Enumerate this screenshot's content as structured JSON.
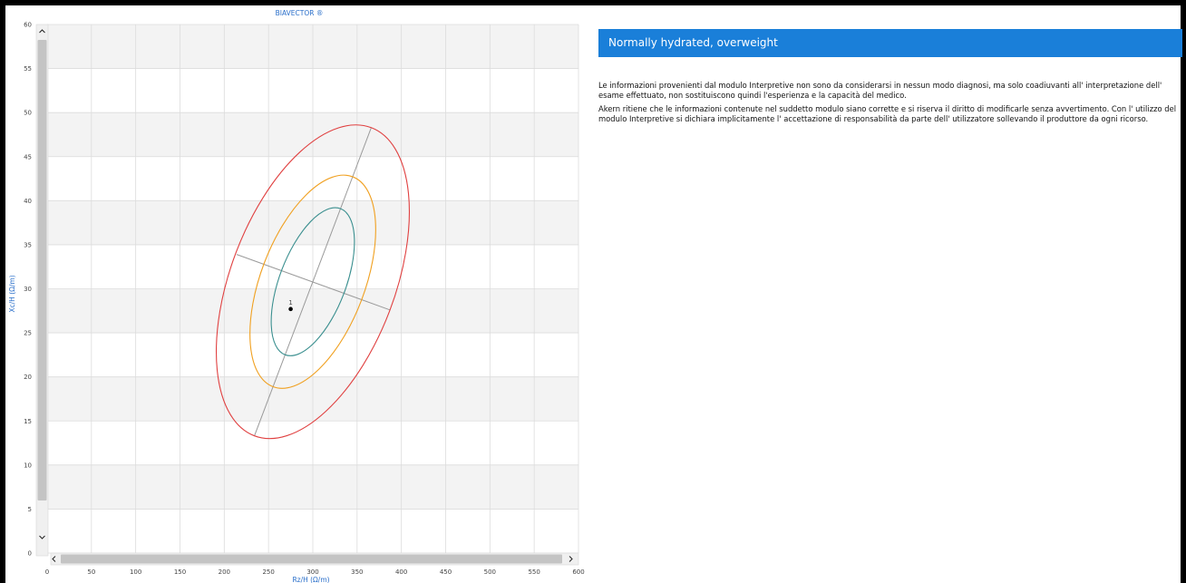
{
  "chart_data": {
    "type": "scatter",
    "title": "BIAVECTOR ®",
    "xlabel": "Rz/H (Ω/m)",
    "ylabel": "Xc/H (Ω/m)",
    "xlim": [
      0,
      600
    ],
    "ylim": [
      0,
      60
    ],
    "x_ticks": [
      0,
      50,
      100,
      150,
      200,
      250,
      300,
      350,
      400,
      450,
      500,
      550,
      600
    ],
    "y_ticks": [
      0,
      5,
      10,
      15,
      20,
      25,
      30,
      35,
      40,
      45,
      50,
      55,
      60
    ],
    "grid": true,
    "points": [
      {
        "label": "1",
        "x": 275,
        "y": 27.7
      }
    ],
    "tolerance_ellipses": [
      {
        "color": "#3a8f8f",
        "center": [
          300,
          30.8
        ],
        "extent_x": [
          253,
          347
        ],
        "extent_y": [
          22.4,
          39.2
        ]
      },
      {
        "color": "#f0a020",
        "center": [
          300,
          30.8
        ],
        "extent_x": [
          229,
          371
        ],
        "extent_y": [
          18.7,
          42.9
        ]
      },
      {
        "color": "#e04040",
        "center": [
          300,
          30.8
        ],
        "extent_x": [
          191,
          409
        ],
        "extent_y": [
          13.0,
          48.6
        ]
      }
    ],
    "axes_lines": [
      {
        "from": [
          234,
          13.3
        ],
        "to": [
          366,
          48.3
        ]
      },
      {
        "from": [
          214,
          33.9
        ],
        "to": [
          387,
          27.6
        ]
      }
    ]
  },
  "info": {
    "banner": "Normally hydrated, overweight",
    "paragraph1": "Le informazioni provenienti dal modulo Interpretive non sono da considerarsi in nessun modo diagnosi, ma solo coadiuvanti all' interpretazione dell' esame effettuato, non sostituiscono quindi l'esperienza e la capacità del medico.",
    "paragraph2": "Akern ritiene che le informazioni contenute nel suddetto modulo siano corrette e si riserva il diritto di modificarle senza avvertimento. Con l' utilizzo del modulo Interpretive si dichiara implicitamente l' accettazione di responsabilità da parte dell' utilizzatore sollevando il produttore da ogni ricorso."
  },
  "icons": {
    "scroll_up": "chevron-up-icon",
    "scroll_down": "chevron-down-icon",
    "scroll_left": "chevron-left-icon",
    "scroll_right": "chevron-right-icon"
  },
  "colors": {
    "banner": "#1a7fd9",
    "axis_text": "#2a6fca",
    "point": "#000000"
  }
}
